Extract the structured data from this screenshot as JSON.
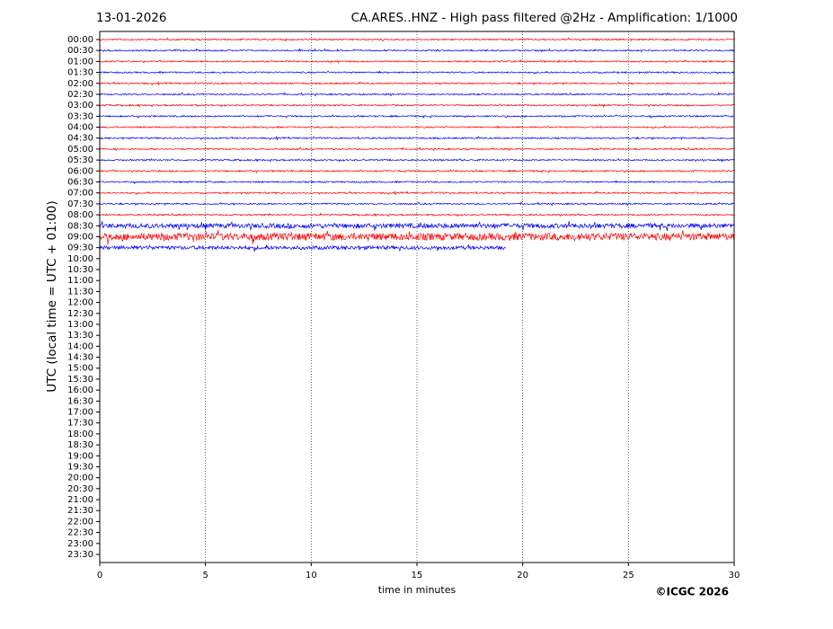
{
  "chart_data": {
    "type": "helicorder",
    "date": "13-01-2026",
    "title": "CA.ARES..HNZ - High pass filtered @2Hz - Amplification: 1/1000",
    "xlabel": "time in minutes",
    "ylabel": "UTC (local time = UTC + 01:00)",
    "copyright": "©ICGC 2026",
    "xlim": [
      0,
      30
    ],
    "xticks": [
      0,
      5,
      10,
      15,
      20,
      25,
      30
    ],
    "grid": true,
    "colors": [
      "#ff0000",
      "#0000ff"
    ],
    "categories": [
      "00:00",
      "00:30",
      "01:00",
      "01:30",
      "02:00",
      "02:30",
      "03:00",
      "03:30",
      "04:00",
      "04:30",
      "05:00",
      "05:30",
      "06:00",
      "06:30",
      "07:00",
      "07:30",
      "08:00",
      "08:30",
      "09:00",
      "09:30",
      "10:00",
      "10:30",
      "11:00",
      "11:30",
      "12:00",
      "12:30",
      "13:00",
      "13:30",
      "14:00",
      "14:30",
      "15:00",
      "15:30",
      "16:00",
      "16:30",
      "17:00",
      "17:30",
      "18:00",
      "18:30",
      "19:00",
      "19:30",
      "20:00",
      "20:30",
      "21:00",
      "21:30",
      "22:00",
      "22:30",
      "23:00",
      "23:30"
    ],
    "trace_end": [
      30,
      30,
      30,
      30,
      30,
      30,
      30,
      30,
      30,
      30,
      30,
      30,
      30,
      30,
      30,
      30,
      30,
      30,
      30,
      19.2
    ]
  }
}
